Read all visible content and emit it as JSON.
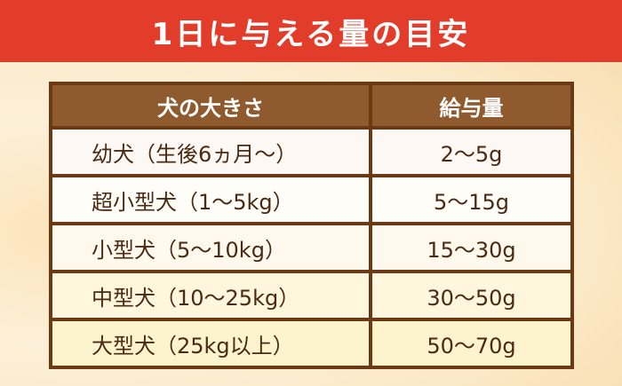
{
  "title": "1日に与える量の目安",
  "colors": {
    "title_bg": "#e23d2b",
    "header_bg": "#8f5a2e",
    "border": "#6b3a14",
    "text": "#4a2a12"
  },
  "table": {
    "headers": [
      "犬の大きさ",
      "給与量"
    ],
    "rows": [
      {
        "size": "幼犬（生後6ヵ月〜）",
        "amount": "2〜5g"
      },
      {
        "size": "超小型犬（1〜5kg）",
        "amount": "5〜15g"
      },
      {
        "size": "小型犬（5〜10kg）",
        "amount": "15〜30g"
      },
      {
        "size": "中型犬（10〜25kg）",
        "amount": "30〜50g"
      },
      {
        "size": "大型犬（25kg以上）",
        "amount": "50〜70g"
      }
    ]
  }
}
